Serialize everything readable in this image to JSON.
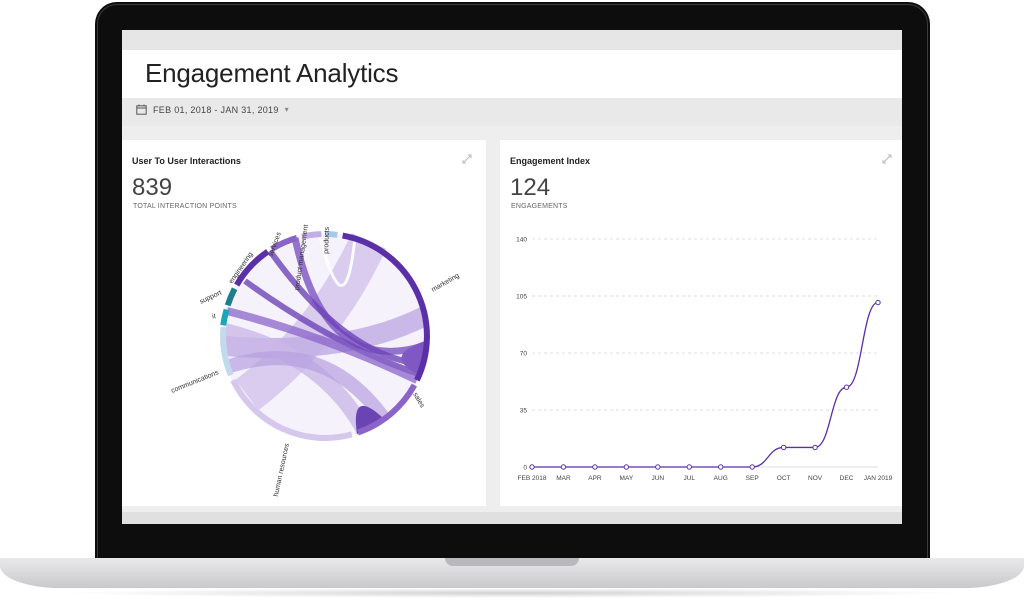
{
  "header": {
    "title": "Engagement Analytics"
  },
  "filter": {
    "date_range": "FEB 01, 2018 - JAN 31, 2019",
    "icon": "calendar-icon"
  },
  "interactions": {
    "title": "User To User Interactions",
    "value": "839",
    "label": "TOTAL INTERACTION POINTS",
    "departments": [
      "marketing",
      "sales",
      "human resources",
      "communications",
      "it",
      "support",
      "engineering",
      "services",
      "product management",
      "products"
    ]
  },
  "engagement": {
    "title": "Engagement Index",
    "value": "124",
    "label": "ENGAGEMENTS"
  },
  "colors": {
    "purple_dark": "#5b2fa8",
    "purple_mid": "#8058c4",
    "purple_light": "#d6c8ec",
    "teal": "#1aa6b7"
  },
  "chart_data": {
    "type": "line",
    "title": "Engagement Index",
    "categories": [
      "FEB 2018",
      "MAR",
      "APR",
      "MAY",
      "JUN",
      "JUL",
      "AUG",
      "SEP",
      "OCT",
      "NOV",
      "DEC",
      "JAN 2019"
    ],
    "values": [
      0,
      0,
      0,
      0,
      0,
      0,
      0,
      0,
      12,
      12,
      49,
      101
    ],
    "yticks": [
      "140",
      "105",
      "70",
      "35",
      "0"
    ],
    "ylim": [
      0,
      140
    ],
    "xlabel": "",
    "ylabel": "",
    "grid": true
  }
}
